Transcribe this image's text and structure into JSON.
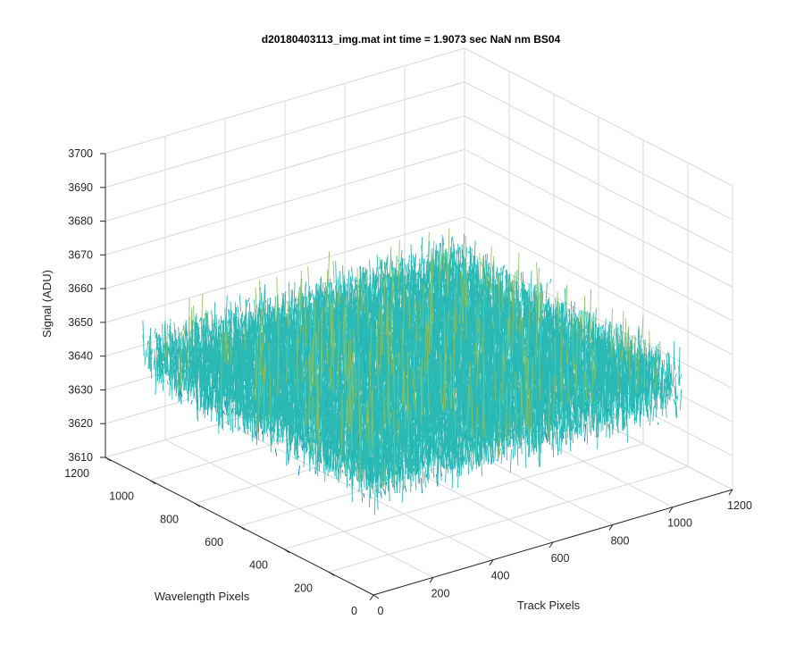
{
  "chart_data": {
    "type": "surface-3d",
    "title": "d20180403113_img.mat int time = 1.9073 sec  NaN nm BS04",
    "xlabel": "Track Pixels",
    "ylabel": "Wavelength Pixels",
    "zlabel": "Signal (ADU)",
    "xlim": [
      0,
      1200
    ],
    "ylim": [
      0,
      1200
    ],
    "zlim": [
      3610,
      3700
    ],
    "x_ticks": [
      "0",
      "200",
      "400",
      "600",
      "800",
      "1000",
      "1200"
    ],
    "y_ticks": [
      "0",
      "200",
      "400",
      "600",
      "800",
      "1000",
      "1200"
    ],
    "z_ticks": [
      "3610",
      "3620",
      "3630",
      "3640",
      "3650",
      "3660",
      "3670",
      "3680",
      "3690",
      "3700"
    ],
    "grid": true,
    "data_extent": {
      "x": [
        0,
        1024
      ],
      "y": [
        0,
        1024
      ]
    },
    "signal_mean": 3646,
    "signal_noise_range": [
      3620,
      3688
    ],
    "colors": {
      "low": "#0072bd",
      "mid": "#1fb5b0",
      "midhigh": "#8cc060",
      "high": "#f0c030",
      "grid": "#d9d9d9",
      "axis": "#262626"
    }
  }
}
